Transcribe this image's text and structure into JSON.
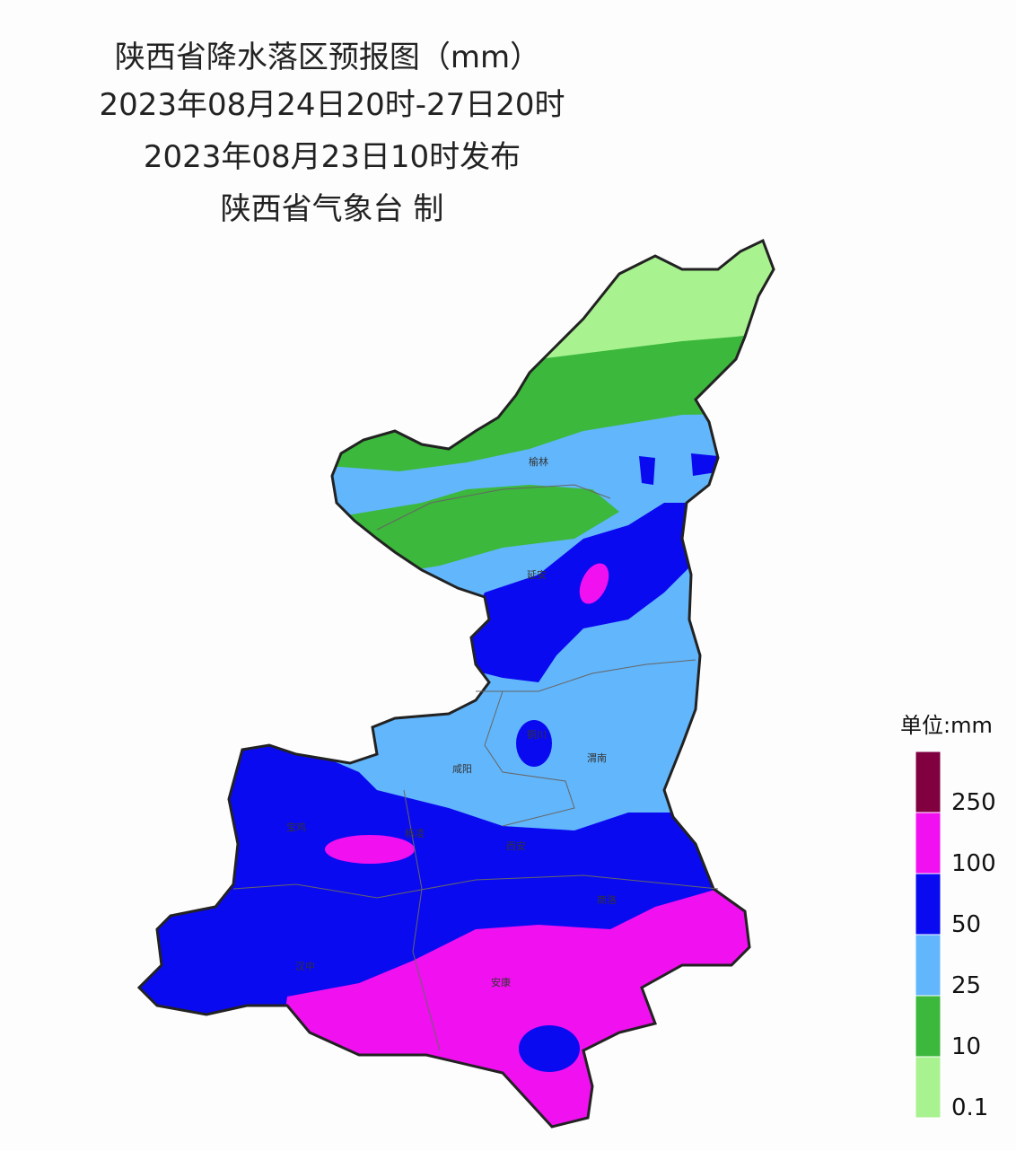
{
  "header": {
    "title": "陕西省降水落区预报图（mm）",
    "period": "2023年08月24日20时-27日20时",
    "issued": "2023年08月23日10时发布",
    "producer": "陕西省气象台 制"
  },
  "cities": [
    "榆林",
    "延安",
    "铜川",
    "咸阳",
    "渭南",
    "宝鸡",
    "杨凌",
    "西安",
    "商洛",
    "汉中",
    "安康"
  ],
  "legend": {
    "unit": "单位:mm",
    "labels": [
      0.1,
      10,
      25,
      50,
      100,
      250
    ],
    "colors": [
      "#a8f290",
      "#3cb83c",
      "#62b6fb",
      "#0a0af0",
      "#f010f0",
      "#800040"
    ]
  }
}
